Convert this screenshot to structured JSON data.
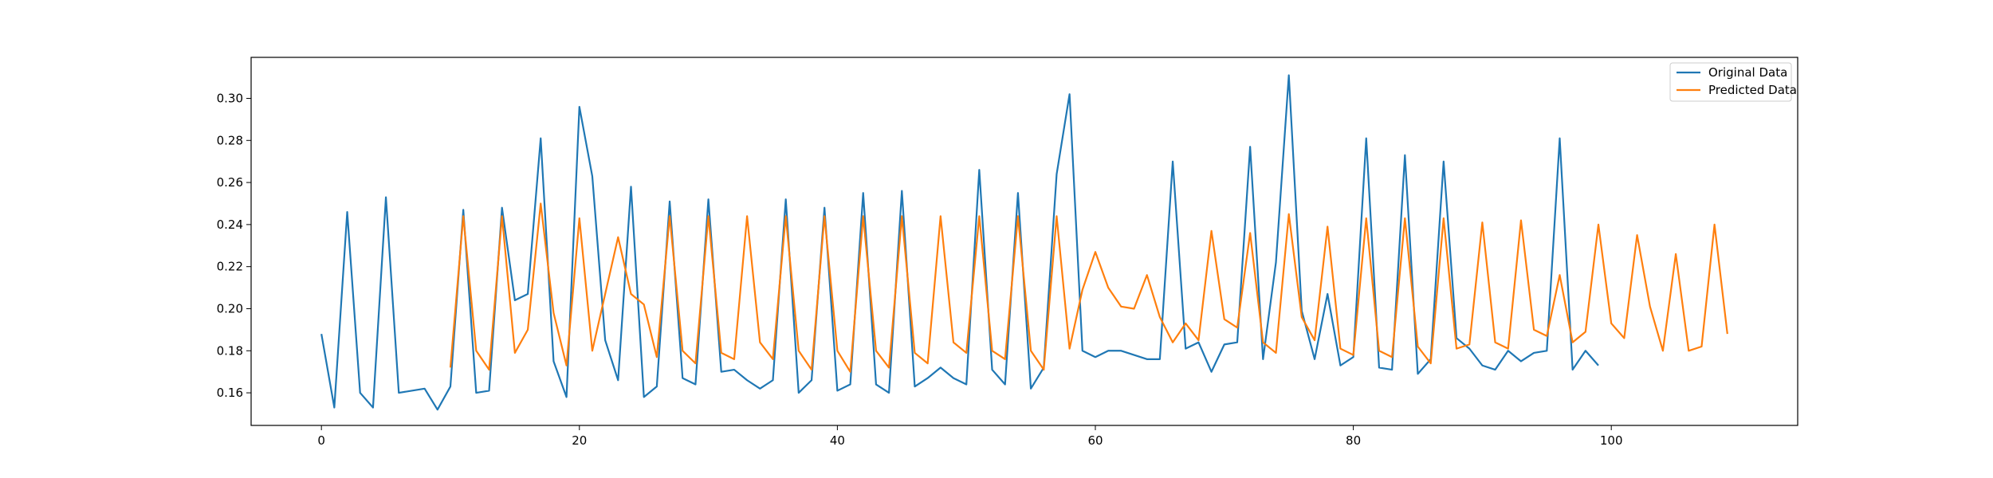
{
  "chart_data": {
    "type": "line",
    "title": "",
    "xlabel": "",
    "ylabel": "",
    "xlim": [
      -5.45,
      114.45
    ],
    "ylim": [
      0.1445,
      0.3195
    ],
    "x_ticks": [
      0,
      20,
      40,
      60,
      80,
      100
    ],
    "y_ticks": [
      0.16,
      0.18,
      0.2,
      0.22,
      0.24,
      0.26,
      0.28,
      0.3
    ],
    "grid": false,
    "legend_position": "top-right",
    "series": [
      {
        "name": "Original Data",
        "color": "#1f77b4",
        "x_start": 0,
        "values": [
          0.188,
          0.153,
          0.246,
          0.16,
          0.153,
          0.253,
          0.16,
          0.161,
          0.162,
          0.152,
          0.163,
          0.247,
          0.16,
          0.161,
          0.248,
          0.204,
          0.207,
          0.281,
          0.175,
          0.158,
          0.296,
          0.263,
          0.185,
          0.166,
          0.258,
          0.158,
          0.163,
          0.251,
          0.167,
          0.164,
          0.252,
          0.17,
          0.171,
          0.166,
          0.162,
          0.166,
          0.252,
          0.16,
          0.166,
          0.248,
          0.161,
          0.164,
          0.255,
          0.164,
          0.16,
          0.256,
          0.163,
          0.167,
          0.172,
          0.167,
          0.164,
          0.266,
          0.171,
          0.164,
          0.255,
          0.162,
          0.172,
          0.264,
          0.302,
          0.18,
          0.177,
          0.18,
          0.18,
          0.178,
          0.176,
          0.176,
          0.27,
          0.181,
          0.184,
          0.17,
          0.183,
          0.184,
          0.277,
          0.176,
          0.222,
          0.311,
          0.199,
          0.176,
          0.207,
          0.173,
          0.177,
          0.281,
          0.172,
          0.171,
          0.273,
          0.169,
          0.176,
          0.27,
          0.186,
          0.181,
          0.173,
          0.171,
          0.18,
          0.175,
          0.179,
          0.18,
          0.281,
          0.171,
          0.18,
          0.173
        ]
      },
      {
        "name": "Predicted Data",
        "color": "#ff7f0e",
        "x_start": 10,
        "values": [
          0.172,
          0.244,
          0.18,
          0.171,
          0.244,
          0.179,
          0.19,
          0.25,
          0.198,
          0.173,
          0.243,
          0.18,
          0.207,
          0.234,
          0.207,
          0.202,
          0.177,
          0.244,
          0.18,
          0.174,
          0.244,
          0.179,
          0.176,
          0.244,
          0.184,
          0.176,
          0.244,
          0.18,
          0.171,
          0.244,
          0.18,
          0.17,
          0.244,
          0.18,
          0.172,
          0.244,
          0.179,
          0.174,
          0.244,
          0.184,
          0.179,
          0.244,
          0.18,
          0.176,
          0.244,
          0.18,
          0.171,
          0.244,
          0.181,
          0.209,
          0.227,
          0.21,
          0.201,
          0.2,
          0.216,
          0.196,
          0.184,
          0.193,
          0.185,
          0.237,
          0.195,
          0.191,
          0.236,
          0.184,
          0.179,
          0.245,
          0.196,
          0.185,
          0.239,
          0.181,
          0.178,
          0.243,
          0.18,
          0.177,
          0.243,
          0.182,
          0.174,
          0.243,
          0.181,
          0.183,
          0.241,
          0.184,
          0.181,
          0.242,
          0.19,
          0.187,
          0.216,
          0.184,
          0.189,
          0.24,
          0.193,
          0.186,
          0.235,
          0.201,
          0.18,
          0.226,
          0.18,
          0.182,
          0.24,
          0.188
        ]
      }
    ]
  }
}
